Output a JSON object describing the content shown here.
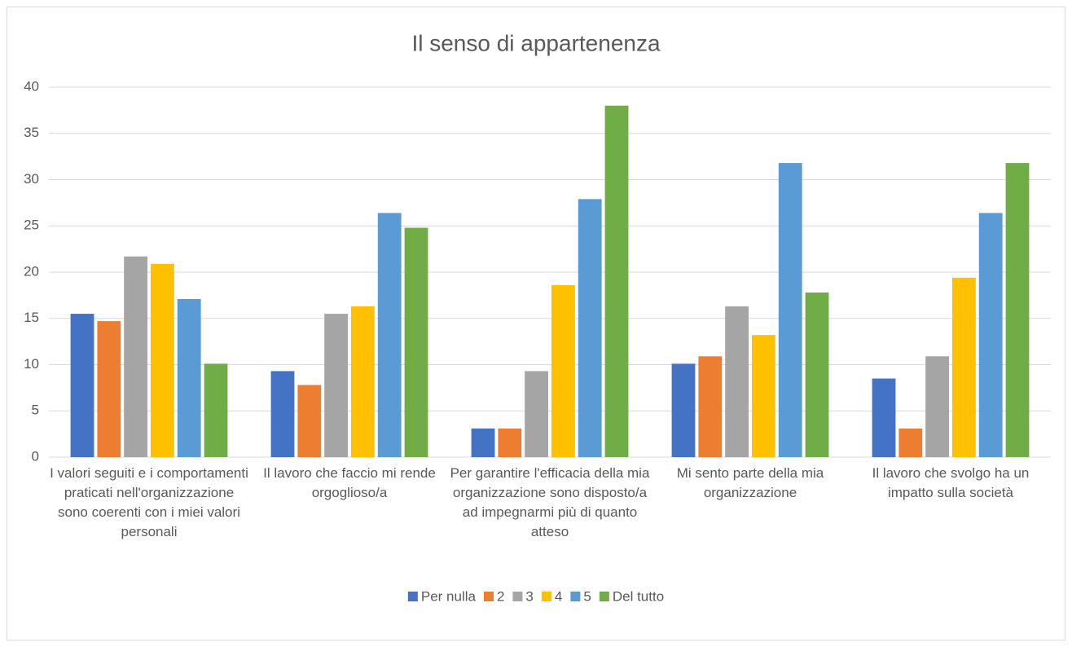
{
  "chart_data": {
    "type": "bar",
    "title": "Il senso di appartenenza",
    "categories": [
      "I valori seguiti e i comportamenti praticati nell'organizzazione sono coerenti con i miei valori personali",
      "Il lavoro che faccio mi rende orgoglioso/a",
      "Per garantire l'efficacia della mia organizzazione sono disposto/a ad impegnarmi più di quanto atteso",
      "Mi sento parte della mia organizzazione",
      "Il lavoro che svolgo ha un impatto sulla società"
    ],
    "series": [
      {
        "name": "Per nulla",
        "color": "#4472c4",
        "values": [
          15.5,
          9.3,
          3.1,
          10.1,
          8.5
        ]
      },
      {
        "name": "2",
        "color": "#ed7d31",
        "values": [
          14.7,
          7.8,
          3.1,
          10.9,
          3.1
        ]
      },
      {
        "name": "3",
        "color": "#a5a5a5",
        "values": [
          21.7,
          15.5,
          9.3,
          16.3,
          10.9
        ]
      },
      {
        "name": "4",
        "color": "#ffc000",
        "values": [
          20.9,
          16.3,
          18.6,
          13.2,
          19.4
        ]
      },
      {
        "name": "5",
        "color": "#5b9bd5",
        "values": [
          17.1,
          26.4,
          27.9,
          31.8,
          26.4
        ]
      },
      {
        "name": "Del tutto",
        "color": "#70ad47",
        "values": [
          10.1,
          24.8,
          38.0,
          17.8,
          31.8
        ]
      }
    ],
    "ylim": [
      0,
      40
    ],
    "yticks": [
      0,
      5,
      10,
      15,
      20,
      25,
      30,
      35,
      40
    ],
    "grid": true,
    "legend": "bottom"
  }
}
